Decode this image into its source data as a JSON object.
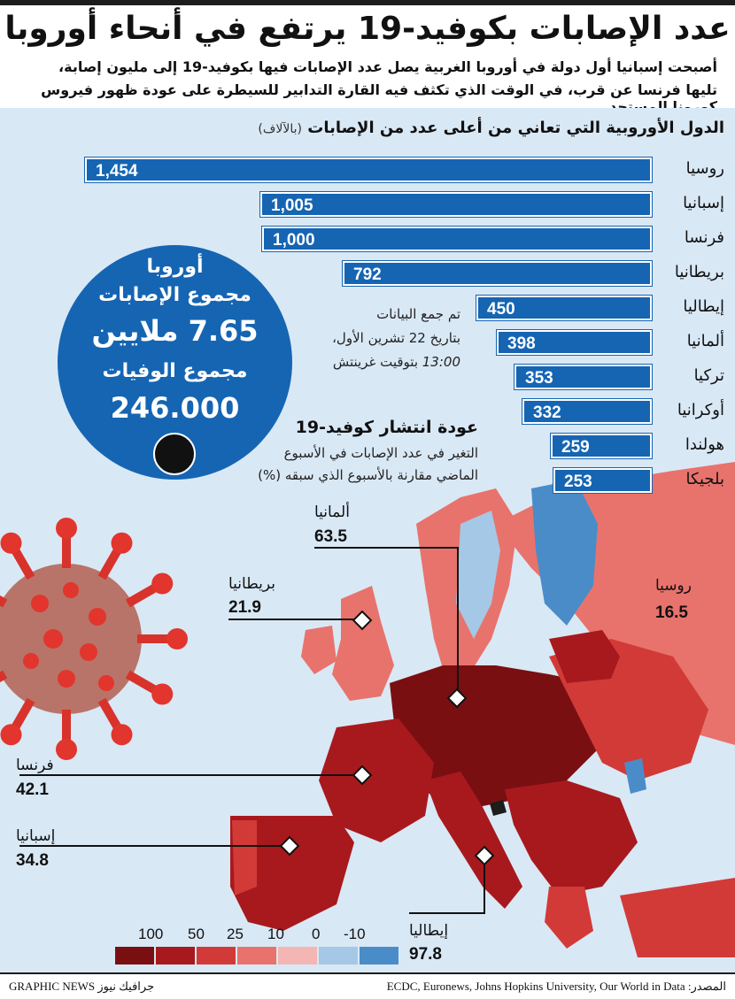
{
  "header": {
    "title": "عدد الإصابات بكوفيد-19 يرتفع في أنحاء أوروبا",
    "intro_line1": "أصبحت إسبانيا أول دولة في أوروبا الغربية يصل عدد الإصابات فيها بكوفيد-19 إلى مليون إصابة،",
    "intro_line2": "تليها فرنسا عن قرب، في الوقت الذي تكثف فيه القارة التدابير للسيطرة على عودة ظهور فيروس كورونا المستجد"
  },
  "colors": {
    "bar": "#1565b3",
    "background": "#d9e8f5",
    "scale": [
      "#7a0f12",
      "#a8191d",
      "#d23a38",
      "#e8736c",
      "#f4b6b2",
      "#a5c8e6",
      "#4a8cc8"
    ]
  },
  "chart_data": [
    {
      "type": "bar",
      "orientation": "horizontal",
      "title": "الدول الأوروبية التي تعاني من أعلى عدد من الإصابات",
      "unit": "(بالآلاف)",
      "categories": [
        "روسيا",
        "إسبانيا",
        "فرنسا",
        "بريطانيا",
        "إيطاليا",
        "ألمانيا",
        "تركيا",
        "أوكرانيا",
        "هولندا",
        "بلجيكا"
      ],
      "values": [
        1454,
        1005,
        1000,
        792,
        450,
        398,
        353,
        332,
        259,
        253
      ],
      "value_labels": [
        "1,454",
        "1,005",
        "1,000",
        "792",
        "450",
        "398",
        "353",
        "332",
        "259",
        "253"
      ]
    },
    {
      "type": "heatmap",
      "title": "عودة انتشار كوفيد-19",
      "subtitle_line1": "التغير في عدد الإصابات في الأسبوع",
      "subtitle_line2": "الماضي مقارنة بالأسبوع الذي سبقه (%)",
      "legend_ticks": [
        "100",
        "50",
        "25",
        "10",
        "0",
        "-10"
      ],
      "callouts": [
        {
          "name": "ألمانيا",
          "value": 63.5
        },
        {
          "name": "بريطانيا",
          "value": 21.9
        },
        {
          "name": "روسيا",
          "value": 16.5
        },
        {
          "name": "فرنسا",
          "value": 42.1
        },
        {
          "name": "إسبانيا",
          "value": 34.8
        },
        {
          "name": "إيطاليا",
          "value": 97.8
        }
      ]
    }
  ],
  "summary": {
    "region": "أوروبا",
    "cases_label": "مجموع الإصابات",
    "cases_value": "7.65 ملايين",
    "deaths_label": "مجموع الوفيات",
    "deaths_value": "246.000"
  },
  "timestamp": {
    "line1": "تم جمع البيانات",
    "line2": "بتاريخ 22 تشرين الأول،",
    "line3_time": "13:00",
    "line3_rest": " بتوقيت غرينتش"
  },
  "footer": {
    "source": "المصدر: ECDC, Euronews, Johns Hopkins University, Our World in Data",
    "credit": "GRAPHIC NEWS جرافيك نيوز"
  }
}
